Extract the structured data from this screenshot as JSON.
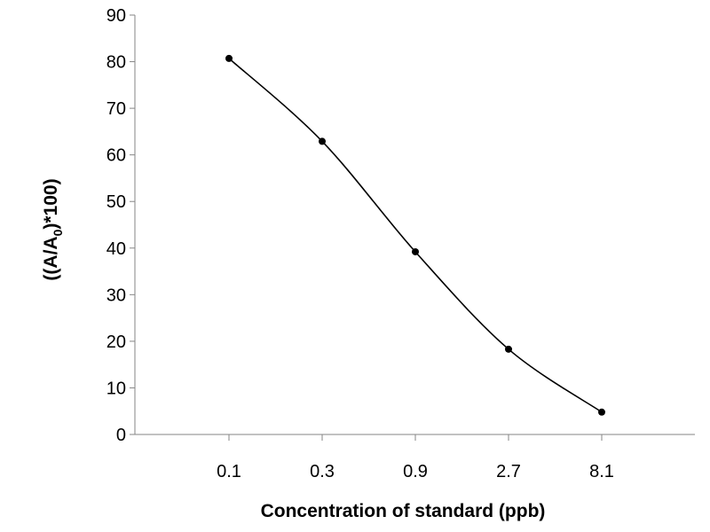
{
  "chart_data": {
    "type": "line",
    "categories": [
      "0.1",
      "0.3",
      "0.9",
      "2.7",
      "8.1"
    ],
    "series": [
      {
        "values": [
          80.7,
          62.9,
          39.2,
          18.3,
          4.8
        ]
      }
    ],
    "xlabel": "Concentration of standard (ppb)",
    "ylabel": {
      "prefix": "((A/A",
      "subscript": "0",
      "suffix": ")*100)"
    },
    "ylim": [
      0,
      90
    ],
    "yticks": [
      "0",
      "10",
      "20",
      "30",
      "40",
      "50",
      "60",
      "70",
      "80",
      "90"
    ],
    "smoothed": true,
    "markers": "circle",
    "line_color": "#000000",
    "axis_color": "#868686",
    "grid": false,
    "legend": "none"
  }
}
